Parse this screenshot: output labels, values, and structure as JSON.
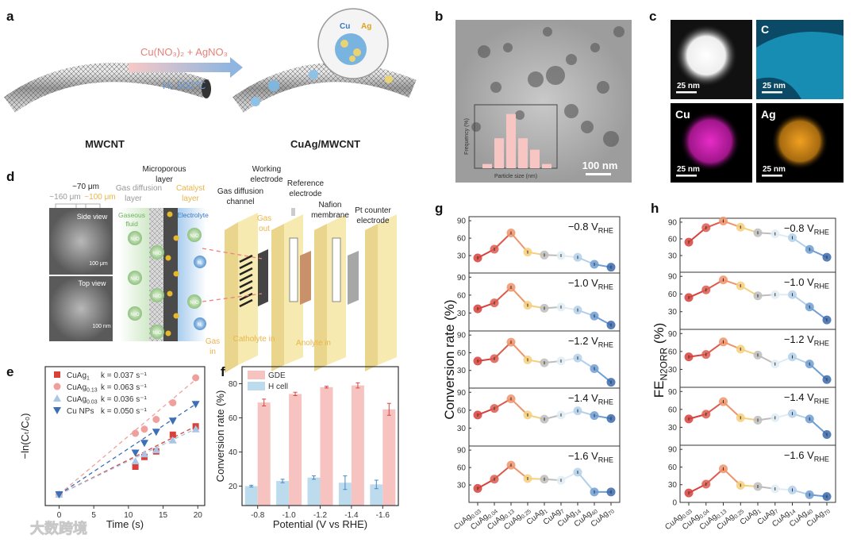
{
  "panel_a": {
    "label": "a",
    "precursor": "Cu(NO₃)₂ + AgNO₃",
    "condition": "H₂ 500℃",
    "left_caption": "MWCNT",
    "right_caption": "CuAg/MWCNT",
    "inset_cu": "Cu",
    "inset_ag": "Ag"
  },
  "panel_b": {
    "label": "b",
    "scale_bar": "100 nm",
    "inset_xlabel": "Particle size (nm)",
    "inset_ylabel": "Frequency (%)",
    "inset_histogram": [
      3,
      21,
      38,
      21,
      13,
      3
    ]
  },
  "panel_c": {
    "label": "c",
    "tiles": [
      {
        "element": "",
        "scale": "25 nm"
      },
      {
        "element": "C",
        "scale": "25 nm"
      },
      {
        "element": "Cu",
        "scale": "25 nm"
      },
      {
        "element": "Ag",
        "scale": "25 nm"
      }
    ]
  },
  "panel_d": {
    "label": "d",
    "thickness_total": "~70 μm",
    "thickness_gdl": "~160 μm",
    "thickness_cl": "~100 μm",
    "side_view": "Side view",
    "top_view": "Top view",
    "scale_side": "100 μm",
    "scale_top": "100 nm",
    "microporous": [
      "Microporous",
      "layer"
    ],
    "gas_diffusion_layer": [
      "Gas diffusion",
      "layer"
    ],
    "catalyst_layer": [
      "Catalyst",
      "layer"
    ],
    "gaseous_fluid": [
      "Gaseous",
      "fluid"
    ],
    "electrolyte": "Electrolyte",
    "n2o": "N₂O",
    "n2": "N₂",
    "gas_diffusion_channel": [
      "Gas diffusion",
      "channel"
    ],
    "working_electrode": [
      "Working",
      "electrode"
    ],
    "reference_electrode": [
      "Reference",
      "electrode"
    ],
    "nafion": [
      "Nafion",
      "membrane"
    ],
    "pt_counter": [
      "Pt counter",
      "electrode"
    ],
    "gas_out": [
      "Gas",
      "out"
    ],
    "gas_in": [
      "Gas",
      "in"
    ],
    "catholyte_in": "Catholyte in",
    "anolyte_in": "Anolyte in"
  },
  "watermark": "大数跨境",
  "colors": {
    "red": "#d8403a",
    "pink": "#f0a09c",
    "lightblue": "#a9c6e6",
    "blue": "#3d6fb6",
    "gde": "#f6c3c0",
    "hcell": "#bcdcee",
    "errbar_gde": "#d9463f",
    "errbar_h": "#4a86c5",
    "seq": [
      "#d8403a",
      "#dc5a4e",
      "#f0936a",
      "#f6cf7c",
      "#bdbdbd",
      "#e0ecf5",
      "#b3d0ea",
      "#6f9ed3",
      "#3a68ad"
    ]
  },
  "chart_data": [
    {
      "id": "e",
      "label": "e",
      "type": "scatter",
      "xlabel": "Time (s)",
      "ylabel": "−ln(Cₜ/C₀)",
      "xlim": [
        -2,
        21
      ],
      "ylim": [
        0,
        1
      ],
      "xticks": [
        0,
        5,
        10,
        15,
        20
      ],
      "legend_position": "top-left",
      "series": [
        {
          "name": "CuAg",
          "sub": "1",
          "k": "k = 0.037 s⁻¹",
          "marker": "square",
          "color": "#d8403a",
          "slope": 0.0249,
          "points": [
            [
              0,
              0.08
            ],
            [
              11,
              0.28
            ],
            [
              12.3,
              0.35
            ],
            [
              14,
              0.39
            ],
            [
              16.4,
              0.51
            ],
            [
              19.7,
              0.57
            ]
          ]
        },
        {
          "name": "CuAg",
          "sub": "0.13",
          "k": "k = 0.063 s⁻¹",
          "marker": "circle",
          "color": "#f0a09c",
          "slope": 0.042,
          "points": [
            [
              0,
              0.08
            ],
            [
              11,
              0.52
            ],
            [
              12.3,
              0.55
            ],
            [
              14,
              0.62
            ],
            [
              16.4,
              0.74
            ],
            [
              19.7,
              0.92
            ]
          ]
        },
        {
          "name": "CuAg",
          "sub": "0.03",
          "k": "k = 0.036 s⁻¹",
          "marker": "triangle-up",
          "color": "#a9c6e6",
          "slope": 0.024,
          "points": [
            [
              0,
              0.08
            ],
            [
              11,
              0.32
            ],
            [
              12.3,
              0.37
            ],
            [
              14,
              0.4
            ],
            [
              16.4,
              0.47
            ],
            [
              19.7,
              0.55
            ]
          ]
        },
        {
          "name": "Cu NPs",
          "sub": "",
          "k": "k = 0.050 s⁻¹",
          "marker": "triangle-down",
          "color": "#3d6fb6",
          "slope": 0.033,
          "points": [
            [
              0,
              0.08
            ],
            [
              11,
              0.38
            ],
            [
              12.3,
              0.45
            ],
            [
              14,
              0.53
            ],
            [
              16.4,
              0.61
            ],
            [
              19.7,
              0.73
            ]
          ]
        }
      ]
    },
    {
      "id": "f",
      "label": "f",
      "type": "bar",
      "xlabel": "Potential (V vs RHE)",
      "ylabel": "Conversion rate (%)",
      "categories": [
        "-0.8",
        "-1.0",
        "-1.2",
        "-1.4",
        "-1.6"
      ],
      "ylim": [
        8.6,
        90
      ],
      "yticks": [
        20,
        40,
        60,
        80
      ],
      "legend_position": "top-left",
      "series": [
        {
          "name": "H cell",
          "values": [
            20,
            23,
            25,
            22,
            21
          ],
          "errors": [
            0.5,
            1,
            1,
            4,
            2.5
          ]
        },
        {
          "name": "GDE",
          "values": [
            69,
            74,
            78,
            79,
            65
          ],
          "errors": [
            2,
            1,
            0.5,
            1.5,
            3.5
          ]
        }
      ]
    },
    {
      "id": "g",
      "label": "g",
      "type": "line",
      "ylabel": "Conversion rate (%)",
      "categories": [
        {
          "b": "CuAg",
          "s": "0.03"
        },
        {
          "b": "CuAg",
          "s": "0.04"
        },
        {
          "b": "CuAg",
          "s": "0.13"
        },
        {
          "b": "CuAg",
          "s": "0.25"
        },
        {
          "b": "CuAg",
          "s": "1"
        },
        {
          "b": "CuAg",
          "s": "7"
        },
        {
          "b": "CuAg",
          "s": "14"
        },
        {
          "b": "CuAg",
          "s": "40"
        },
        {
          "b": "CuAg",
          "s": "70"
        }
      ],
      "ylim": [
        0,
        97
      ],
      "yticks": [
        30,
        60,
        90
      ],
      "subplots": [
        {
          "potential": "−0.8 V",
          "sub": "RHE",
          "values": [
            26,
            41,
            69,
            36,
            31,
            30,
            27,
            15,
            10
          ]
        },
        {
          "potential": "−1.0 V",
          "sub": "RHE",
          "values": [
            37,
            47,
            73,
            43,
            38,
            40,
            35,
            25,
            10
          ]
        },
        {
          "potential": "−1.2 V",
          "sub": "RHE",
          "values": [
            46,
            50,
            78,
            48,
            43,
            46,
            51,
            33,
            10
          ]
        },
        {
          "potential": "−1.4 V",
          "sub": "RHE",
          "values": [
            52,
            63,
            79,
            52,
            45,
            52,
            59,
            51,
            46
          ]
        },
        {
          "potential": "−1.6 V",
          "sub": "RHE",
          "values": [
            24,
            40,
            64,
            41,
            40,
            38,
            52,
            18,
            18
          ]
        }
      ]
    },
    {
      "id": "h",
      "label": "h",
      "type": "line",
      "ylabel": "FE",
      "ylabel_sub": "N2ORR",
      "ylabel_unit": " (%)",
      "categories": [
        {
          "b": "CuAg",
          "s": "0.03"
        },
        {
          "b": "CuAg",
          "s": "0.04"
        },
        {
          "b": "CuAg",
          "s": "0.13"
        },
        {
          "b": "CuAg",
          "s": "0.25"
        },
        {
          "b": "CuAg",
          "s": "1"
        },
        {
          "b": "CuAg",
          "s": "7"
        },
        {
          "b": "CuAg",
          "s": "14"
        },
        {
          "b": "CuAg",
          "s": "40"
        },
        {
          "b": "CuAg",
          "s": "70"
        }
      ],
      "ylim": [
        0,
        97
      ],
      "yticks": [
        30,
        60,
        90
      ],
      "bottom_yticks": [
        0,
        30,
        60,
        90
      ],
      "subplots": [
        {
          "potential": "−0.8 V",
          "sub": "RHE",
          "values": [
            54,
            80,
            92,
            81,
            71,
            69,
            62,
            41,
            27
          ]
        },
        {
          "potential": "−1.0 V",
          "sub": "RHE",
          "values": [
            54,
            67,
            84,
            74,
            57,
            59,
            59,
            38,
            16
          ]
        },
        {
          "potential": "−1.2 V",
          "sub": "RHE",
          "values": [
            51,
            55,
            76,
            64,
            54,
            39,
            51,
            39,
            13
          ]
        },
        {
          "potential": "−1.4 V",
          "sub": "RHE",
          "values": [
            44,
            52,
            73,
            46,
            42,
            46,
            53,
            44,
            18
          ]
        },
        {
          "potential": "−1.6 V",
          "sub": "RHE",
          "values": [
            16,
            31,
            57,
            29,
            27,
            23,
            21,
            13,
            10
          ]
        }
      ]
    }
  ]
}
